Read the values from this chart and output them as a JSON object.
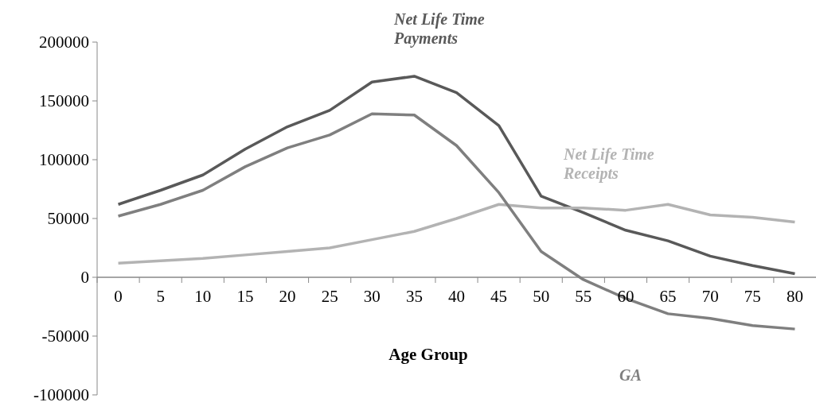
{
  "chart_data": {
    "type": "line",
    "xlabel": "Age Group",
    "categories": [
      "0",
      "5",
      "10",
      "15",
      "20",
      "25",
      "30",
      "35",
      "40",
      "45",
      "50",
      "55",
      "60",
      "65",
      "70",
      "75",
      "80"
    ],
    "series": [
      {
        "name": "Net Life Time Payments",
        "color": "#595959",
        "values": [
          62000,
          74000,
          87000,
          109000,
          128000,
          142000,
          166000,
          171000,
          157000,
          129000,
          69000,
          55000,
          40000,
          31000,
          18000,
          10000,
          3000
        ]
      },
      {
        "name": "Net Life Time Receipts",
        "color": "#b3b3b3",
        "values": [
          12000,
          14000,
          16000,
          19000,
          22000,
          25000,
          32000,
          39000,
          50000,
          62000,
          59000,
          59000,
          57000,
          62000,
          53000,
          51000,
          47000
        ]
      },
      {
        "name": "GA",
        "color": "#7f7f7f",
        "values": [
          52000,
          62000,
          74000,
          94000,
          110000,
          121000,
          139000,
          138000,
          112000,
          72000,
          22000,
          -2000,
          -18000,
          -31000,
          -35000,
          -41000,
          -44000
        ]
      }
    ],
    "ylim": [
      -100000,
      200000
    ],
    "yticks": [
      -100000,
      -50000,
      0,
      50000,
      100000,
      150000,
      200000
    ],
    "grid": false,
    "legend": false,
    "marker": "none",
    "line_style": "solid"
  }
}
